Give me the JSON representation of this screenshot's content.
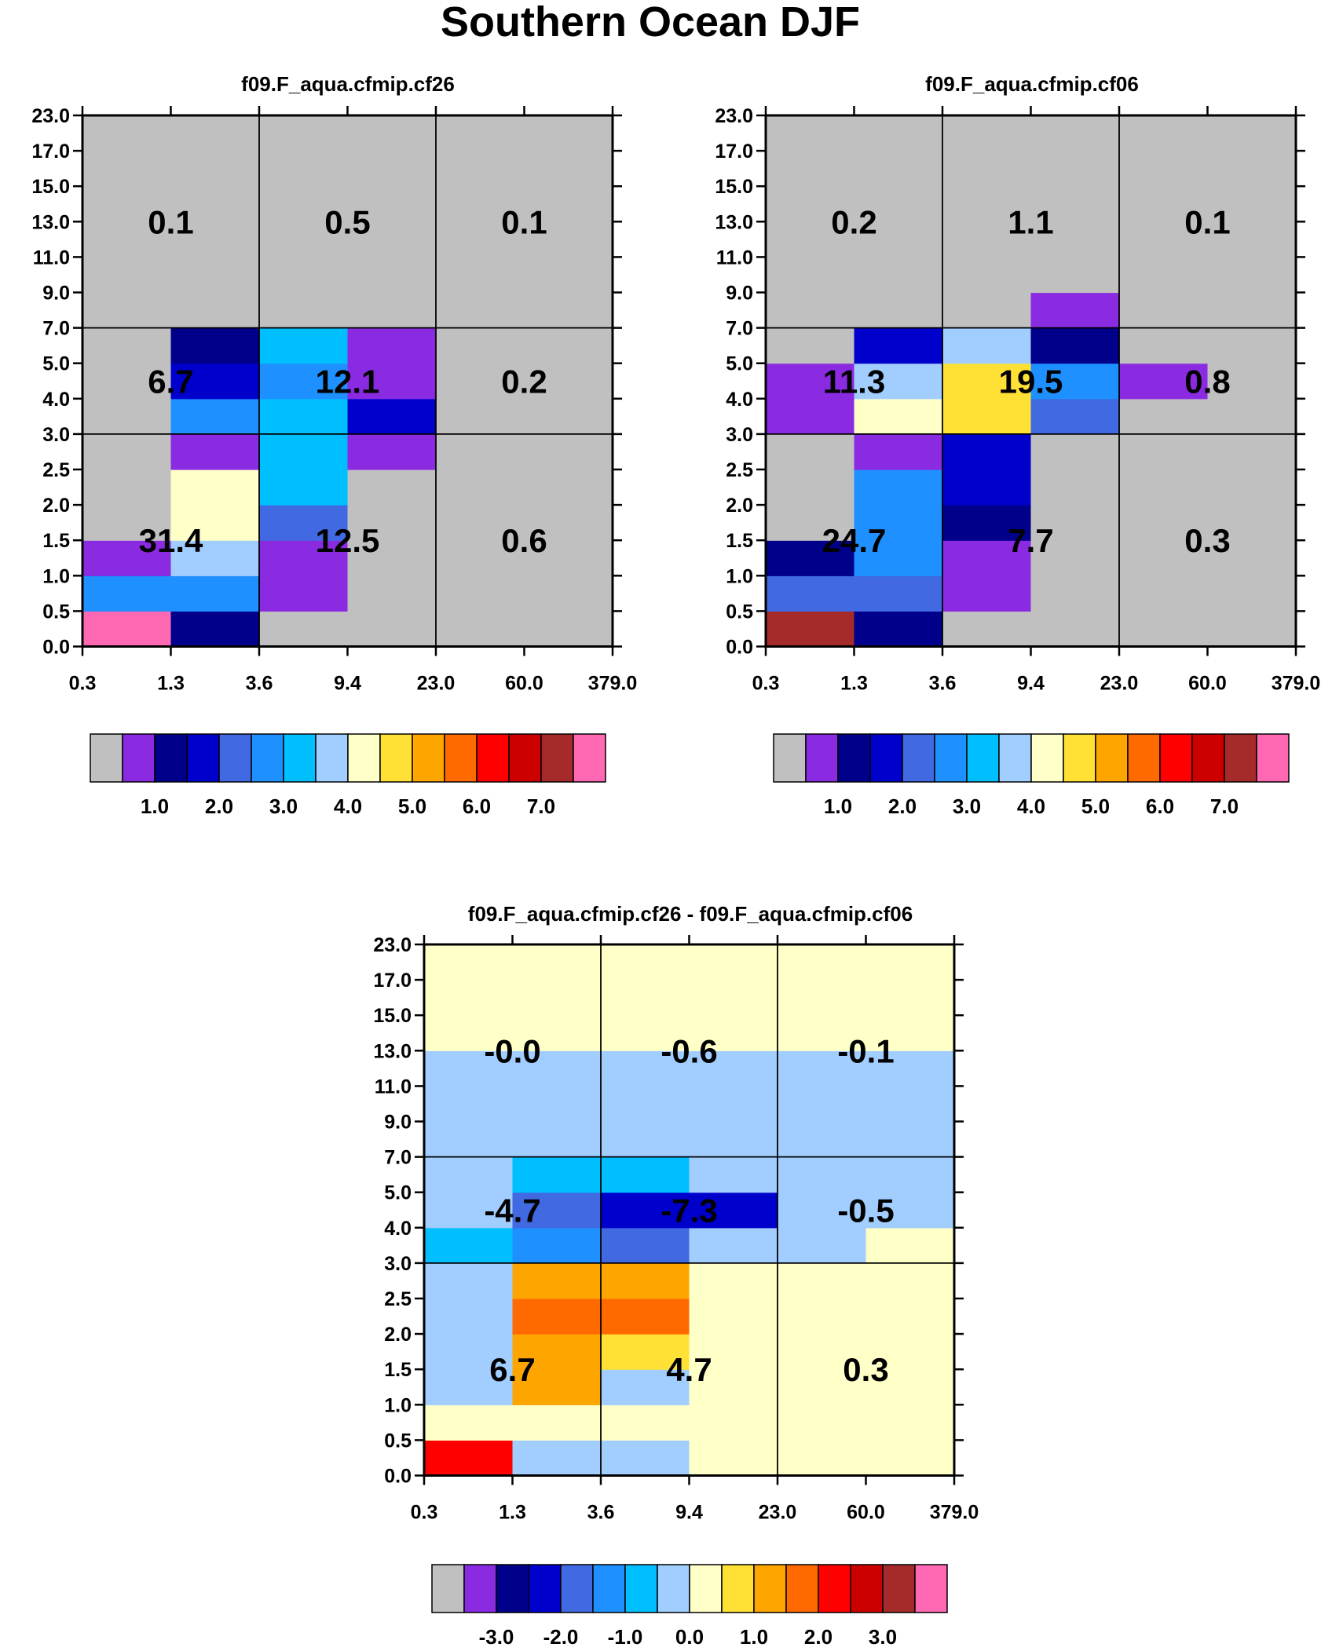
{
  "title": "Southern Ocean DJF",
  "x_ticks": [
    "0.3",
    "1.3",
    "3.6",
    "9.4",
    "23.0",
    "60.0",
    "379.0"
  ],
  "y_ticks": [
    "0.0",
    "0.5",
    "1.0",
    "1.5",
    "2.0",
    "2.5",
    "3.0",
    "4.0",
    "5.0",
    "7.0",
    "9.0",
    "11.0",
    "13.0",
    "15.0",
    "17.0",
    "23.0"
  ],
  "palette": [
    "#c0c0c0",
    "#8a2be2",
    "#00008b",
    "#0000cd",
    "#4169e1",
    "#1e90ff",
    "#00bfff",
    "#a1cdff",
    "#ffffc8",
    "#ffe135",
    "#ffa500",
    "#ff6a00",
    "#ff0000",
    "#cd0000",
    "#a52a2a",
    "#ff69b4"
  ],
  "chart_data": [
    {
      "type": "heatmap",
      "title": "f09.F_aqua.cfmip.cf26",
      "grid": [
        [
          15,
          2,
          0,
          0,
          0,
          0
        ],
        [
          5,
          5,
          1,
          0,
          0,
          0
        ],
        [
          1,
          7,
          1,
          0,
          0,
          0
        ],
        [
          0,
          8,
          4,
          0,
          0,
          0
        ],
        [
          0,
          8,
          6,
          0,
          0,
          0
        ],
        [
          0,
          1,
          6,
          1,
          0,
          0
        ],
        [
          0,
          5,
          6,
          3,
          0,
          0
        ],
        [
          0,
          3,
          5,
          1,
          0,
          0
        ],
        [
          0,
          2,
          6,
          1,
          0,
          0
        ],
        [
          0,
          0,
          0,
          0,
          0,
          0
        ],
        [
          0,
          0,
          0,
          0,
          0,
          0
        ],
        [
          0,
          0,
          0,
          0,
          0,
          0
        ],
        [
          0,
          0,
          0,
          0,
          0,
          0
        ],
        [
          0,
          0,
          0,
          0,
          0,
          0
        ],
        [
          0,
          0,
          0,
          0,
          0,
          0
        ]
      ],
      "block_values": [
        [
          "31.4",
          "12.5",
          "0.6"
        ],
        [
          "6.7",
          "12.1",
          "0.2"
        ],
        [
          "0.1",
          "0.5",
          "0.1"
        ]
      ],
      "colorbar_labels": [
        "1.0",
        "2.0",
        "3.0",
        "4.0",
        "5.0",
        "6.0",
        "7.0"
      ]
    },
    {
      "type": "heatmap",
      "title": "f09.F_aqua.cfmip.cf06",
      "grid": [
        [
          14,
          2,
          0,
          0,
          0,
          0
        ],
        [
          4,
          4,
          1,
          0,
          0,
          0
        ],
        [
          2,
          5,
          1,
          0,
          0,
          0
        ],
        [
          0,
          5,
          2,
          0,
          0,
          0
        ],
        [
          0,
          5,
          3,
          0,
          0,
          0
        ],
        [
          0,
          1,
          3,
          0,
          0,
          0
        ],
        [
          1,
          8,
          9,
          4,
          0,
          0
        ],
        [
          1,
          7,
          9,
          5,
          1,
          0
        ],
        [
          0,
          3,
          7,
          2,
          0,
          0
        ],
        [
          0,
          0,
          0,
          1,
          0,
          0
        ],
        [
          0,
          0,
          0,
          0,
          0,
          0
        ],
        [
          0,
          0,
          0,
          0,
          0,
          0
        ],
        [
          0,
          0,
          0,
          0,
          0,
          0
        ],
        [
          0,
          0,
          0,
          0,
          0,
          0
        ],
        [
          0,
          0,
          0,
          0,
          0,
          0
        ]
      ],
      "block_values": [
        [
          "24.7",
          "7.7",
          "0.3"
        ],
        [
          "11.3",
          "19.5",
          "0.8"
        ],
        [
          "0.2",
          "1.1",
          "0.1"
        ]
      ],
      "colorbar_labels": [
        "1.0",
        "2.0",
        "3.0",
        "4.0",
        "5.0",
        "6.0",
        "7.0"
      ]
    },
    {
      "type": "heatmap",
      "title": "f09.F_aqua.cfmip.cf26 - f09.F_aqua.cfmip.cf06",
      "grid": [
        [
          12,
          7,
          7,
          8,
          8,
          8
        ],
        [
          8,
          8,
          8,
          8,
          8,
          8
        ],
        [
          7,
          10,
          7,
          8,
          8,
          8
        ],
        [
          7,
          10,
          9,
          8,
          8,
          8
        ],
        [
          7,
          11,
          11,
          8,
          8,
          8
        ],
        [
          7,
          10,
          10,
          8,
          8,
          8
        ],
        [
          6,
          5,
          4,
          7,
          7,
          8
        ],
        [
          7,
          4,
          3,
          3,
          7,
          7
        ],
        [
          7,
          6,
          6,
          7,
          7,
          7
        ],
        [
          7,
          7,
          7,
          7,
          7,
          7
        ],
        [
          7,
          7,
          7,
          7,
          7,
          7
        ],
        [
          7,
          7,
          7,
          7,
          7,
          7
        ],
        [
          8,
          8,
          8,
          8,
          8,
          8
        ],
        [
          8,
          8,
          8,
          8,
          8,
          8
        ],
        [
          8,
          8,
          8,
          8,
          8,
          8
        ]
      ],
      "block_values": [
        [
          "6.7",
          "4.7",
          "0.3"
        ],
        [
          "-4.7",
          "-7.3",
          "-0.5"
        ],
        [
          "-0.0",
          "-0.6",
          "-0.1"
        ]
      ],
      "colorbar_labels": [
        "-3.0",
        "-2.0",
        "-1.0",
        "0.0",
        "1.0",
        "2.0",
        "3.0"
      ]
    }
  ]
}
